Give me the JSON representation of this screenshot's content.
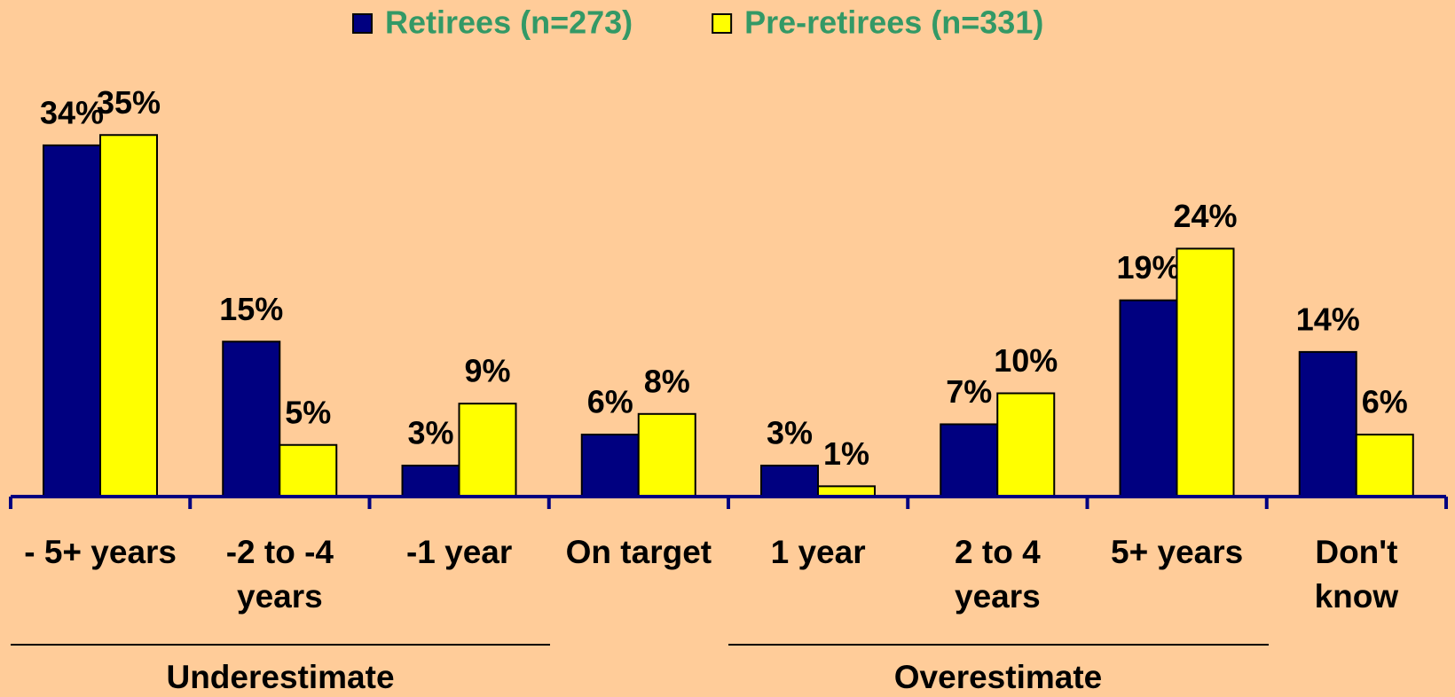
{
  "chart_data": {
    "type": "bar",
    "categories": [
      "- 5+ years",
      "-2 to -4 years",
      "-1 year",
      "On target",
      "1 year",
      "2 to 4 years",
      "5+ years",
      "Don't know"
    ],
    "series": [
      {
        "name": "Retirees (n=273)",
        "color": "#000080",
        "values": [
          34,
          15,
          3,
          6,
          3,
          7,
          19,
          14
        ],
        "value_labels": [
          "34%",
          "15%",
          "3%",
          "6%",
          "3%",
          "7%",
          "19%",
          "14%"
        ]
      },
      {
        "name": "Pre-retirees (n=331)",
        "color": "#ffff00",
        "values": [
          35,
          5,
          9,
          8,
          1,
          10,
          24,
          6
        ],
        "value_labels": [
          "35%",
          "5%",
          "9%",
          "8%",
          "1%",
          "10%",
          "24%",
          "6%"
        ]
      }
    ],
    "group_labels": [
      "Underestimate",
      "Overestimate"
    ],
    "legend": "top"
  }
}
